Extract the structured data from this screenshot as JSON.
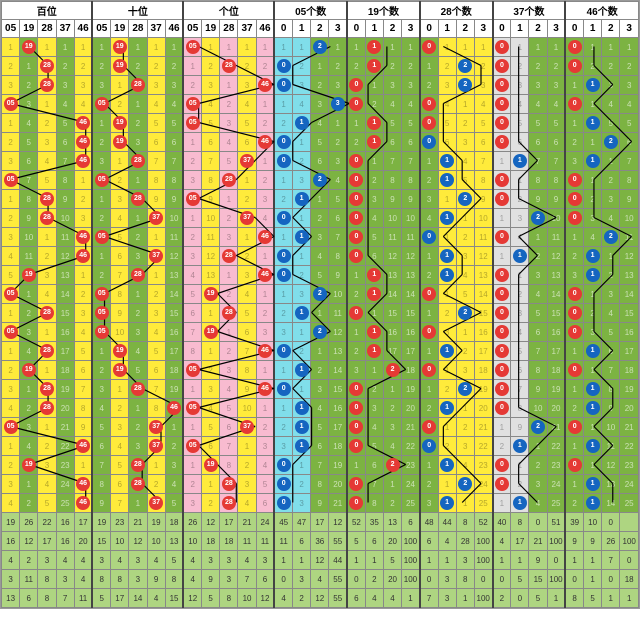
{
  "colors": {
    "yellow": "#ffeb3b",
    "green": "#7cb342",
    "pink": "#f8bbd0",
    "cyan": "#80deea",
    "grey": "#e0e0e0",
    "lightgreen": "#c5e1a5",
    "ball_red": "#e53935",
    "ball_blue": "#1565c0",
    "stat_bg": "#aed581",
    "border": "#888"
  },
  "groups": [
    {
      "title": "百位",
      "cols": [
        "05",
        "19",
        "28",
        "37",
        "46"
      ],
      "type": "digit",
      "col_colors": [
        "yl",
        "gn",
        "yl",
        "gn",
        "yl"
      ]
    },
    {
      "title": "十位",
      "cols": [
        "05",
        "19",
        "28",
        "37",
        "46"
      ],
      "type": "digit",
      "col_colors": [
        "gn",
        "yl",
        "gn",
        "yl",
        "gn"
      ]
    },
    {
      "title": "个位",
      "cols": [
        "05",
        "19",
        "28",
        "37",
        "46"
      ],
      "type": "digit",
      "col_colors": [
        "pk",
        "yl",
        "pk",
        "yl",
        "pk"
      ]
    },
    {
      "title": "05个数",
      "cols": [
        "0",
        "1",
        "2",
        "3"
      ],
      "type": "count",
      "col_colors": [
        "cy",
        "cy",
        "gn",
        "gn"
      ]
    },
    {
      "title": "19个数",
      "cols": [
        "0",
        "1",
        "2",
        "3"
      ],
      "type": "count",
      "col_colors": [
        "gn",
        "gn",
        "gn",
        "gn"
      ]
    },
    {
      "title": "28个数",
      "cols": [
        "0",
        "1",
        "2",
        "3"
      ],
      "type": "count",
      "col_colors": [
        "gn",
        "yl",
        "yl",
        "yl"
      ]
    },
    {
      "title": "37个数",
      "cols": [
        "0",
        "1",
        "2",
        "3"
      ],
      "type": "count",
      "col_colors": [
        "gy",
        "gy",
        "gn",
        "gn"
      ]
    },
    {
      "title": "46个数",
      "cols": [
        "0",
        "1",
        "2",
        "3"
      ],
      "type": "count",
      "col_colors": [
        "gn",
        "gn",
        "gn",
        "gn"
      ]
    }
  ],
  "rows": [
    {
      "d": [
        [
          1,
          "19"
        ],
        [
          1,
          "19"
        ],
        [
          0,
          "05"
        ]
      ],
      "c": [
        [
          2,
          "b"
        ],
        [
          1,
          "r"
        ],
        [
          0,
          "r"
        ],
        [
          0,
          "r"
        ],
        [
          0,
          "r"
        ]
      ]
    },
    {
      "d": [
        [
          2,
          "28"
        ],
        [
          1,
          "19"
        ],
        [
          2,
          "28"
        ]
      ],
      "c": [
        [
          0,
          "b"
        ],
        [
          1,
          "r"
        ],
        [
          2,
          "b"
        ],
        [
          0,
          "r"
        ],
        [
          0,
          "r"
        ]
      ]
    },
    {
      "d": [
        [
          2,
          "28"
        ],
        [
          2,
          "28"
        ],
        [
          4,
          "46"
        ]
      ],
      "c": [
        [
          0,
          "b"
        ],
        [
          0,
          "r"
        ],
        [
          2,
          "b"
        ],
        [
          0,
          "r"
        ],
        [
          1,
          "b"
        ]
      ]
    },
    {
      "d": [
        [
          0,
          "05"
        ],
        [
          0,
          "05"
        ],
        [
          0,
          "05"
        ]
      ],
      "c": [
        [
          3,
          "b"
        ],
        [
          0,
          "r"
        ],
        [
          0,
          "r"
        ],
        [
          0,
          "r"
        ],
        [
          0,
          "r"
        ]
      ]
    },
    {
      "d": [
        [
          4,
          "46"
        ],
        [
          1,
          "19"
        ],
        [
          0,
          "05"
        ]
      ],
      "c": [
        [
          1,
          "b"
        ],
        [
          1,
          "r"
        ],
        [
          0,
          "r"
        ],
        [
          0,
          "r"
        ],
        [
          1,
          "b"
        ]
      ]
    },
    {
      "d": [
        [
          4,
          "46"
        ],
        [
          1,
          "19"
        ],
        [
          4,
          "46"
        ]
      ],
      "c": [
        [
          0,
          "b"
        ],
        [
          1,
          "r"
        ],
        [
          0,
          "b"
        ],
        [
          0,
          "r"
        ],
        [
          2,
          "b"
        ]
      ]
    },
    {
      "d": [
        [
          4,
          "46"
        ],
        [
          2,
          "28"
        ],
        [
          3,
          "37"
        ]
      ],
      "c": [
        [
          0,
          "b"
        ],
        [
          0,
          "r"
        ],
        [
          1,
          "b"
        ],
        [
          1,
          "b"
        ],
        [
          1,
          "b"
        ]
      ]
    },
    {
      "d": [
        [
          0,
          "05"
        ],
        [
          0,
          "05"
        ],
        [
          2,
          "28"
        ]
      ],
      "c": [
        [
          2,
          "b"
        ],
        [
          0,
          "r"
        ],
        [
          1,
          "b"
        ],
        [
          0,
          "r"
        ],
        [
          0,
          "r"
        ]
      ]
    },
    {
      "d": [
        [
          2,
          "28"
        ],
        [
          2,
          "28"
        ],
        [
          0,
          "05"
        ]
      ],
      "c": [
        [
          1,
          "b"
        ],
        [
          0,
          "r"
        ],
        [
          2,
          "b"
        ],
        [
          0,
          "r"
        ],
        [
          0,
          "r"
        ]
      ]
    },
    {
      "d": [
        [
          2,
          "28"
        ],
        [
          3,
          "37"
        ],
        [
          3,
          "37"
        ]
      ],
      "c": [
        [
          0,
          "b"
        ],
        [
          0,
          "r"
        ],
        [
          1,
          "b"
        ],
        [
          2,
          "b"
        ],
        [
          0,
          "r"
        ]
      ]
    },
    {
      "d": [
        [
          4,
          "46"
        ],
        [
          0,
          "05"
        ],
        [
          4,
          "46"
        ]
      ],
      "c": [
        [
          1,
          "b"
        ],
        [
          0,
          "r"
        ],
        [
          0,
          "b"
        ],
        [
          0,
          "r"
        ],
        [
          2,
          "b"
        ]
      ]
    },
    {
      "d": [
        [
          4,
          "46"
        ],
        [
          3,
          "37"
        ],
        [
          2,
          "28"
        ]
      ],
      "c": [
        [
          0,
          "b"
        ],
        [
          0,
          "r"
        ],
        [
          1,
          "b"
        ],
        [
          1,
          "b"
        ],
        [
          1,
          "b"
        ]
      ]
    },
    {
      "d": [
        [
          1,
          "19"
        ],
        [
          2,
          "28"
        ],
        [
          4,
          "46"
        ]
      ],
      "c": [
        [
          0,
          "b"
        ],
        [
          1,
          "r"
        ],
        [
          1,
          "b"
        ],
        [
          0,
          "r"
        ],
        [
          1,
          "b"
        ]
      ]
    },
    {
      "d": [
        [
          0,
          "05"
        ],
        [
          0,
          "05"
        ],
        [
          1,
          "19"
        ]
      ],
      "c": [
        [
          2,
          "b"
        ],
        [
          1,
          "r"
        ],
        [
          0,
          "r"
        ],
        [
          0,
          "r"
        ],
        [
          0,
          "r"
        ]
      ]
    },
    {
      "d": [
        [
          2,
          "28"
        ],
        [
          0,
          "05"
        ],
        [
          2,
          "28"
        ]
      ],
      "c": [
        [
          1,
          "b"
        ],
        [
          0,
          "r"
        ],
        [
          2,
          "b"
        ],
        [
          0,
          "r"
        ],
        [
          0,
          "r"
        ]
      ]
    },
    {
      "d": [
        [
          0,
          "05"
        ],
        [
          0,
          "05"
        ],
        [
          1,
          "19"
        ]
      ],
      "c": [
        [
          2,
          "b"
        ],
        [
          1,
          "r"
        ],
        [
          0,
          "r"
        ],
        [
          0,
          "r"
        ],
        [
          0,
          "r"
        ]
      ]
    },
    {
      "d": [
        [
          2,
          "28"
        ],
        [
          1,
          "19"
        ],
        [
          4,
          "46"
        ]
      ],
      "c": [
        [
          0,
          "b"
        ],
        [
          1,
          "r"
        ],
        [
          1,
          "b"
        ],
        [
          0,
          "r"
        ],
        [
          1,
          "b"
        ]
      ]
    },
    {
      "d": [
        [
          1,
          "19"
        ],
        [
          1,
          "19"
        ],
        [
          0,
          "05"
        ]
      ],
      "c": [
        [
          1,
          "b"
        ],
        [
          2,
          "r"
        ],
        [
          0,
          "r"
        ],
        [
          0,
          "r"
        ],
        [
          0,
          "r"
        ]
      ]
    },
    {
      "d": [
        [
          2,
          "28"
        ],
        [
          2,
          "28"
        ],
        [
          4,
          "46"
        ]
      ],
      "c": [
        [
          0,
          "b"
        ],
        [
          0,
          "r"
        ],
        [
          2,
          "b"
        ],
        [
          0,
          "r"
        ],
        [
          1,
          "b"
        ]
      ]
    },
    {
      "d": [
        [
          2,
          "28"
        ],
        [
          4,
          "46"
        ],
        [
          0,
          "05"
        ]
      ],
      "c": [
        [
          1,
          "b"
        ],
        [
          0,
          "r"
        ],
        [
          1,
          "b"
        ],
        [
          0,
          "r"
        ],
        [
          1,
          "b"
        ]
      ]
    },
    {
      "d": [
        [
          0,
          "05"
        ],
        [
          3,
          "37"
        ],
        [
          3,
          "37"
        ]
      ],
      "c": [
        [
          1,
          "b"
        ],
        [
          0,
          "r"
        ],
        [
          0,
          "r"
        ],
        [
          2,
          "b"
        ],
        [
          0,
          "r"
        ]
      ]
    },
    {
      "d": [
        [
          4,
          "46"
        ],
        [
          3,
          "37"
        ],
        [
          0,
          "05"
        ]
      ],
      "c": [
        [
          1,
          "b"
        ],
        [
          0,
          "r"
        ],
        [
          0,
          "b"
        ],
        [
          1,
          "b"
        ],
        [
          1,
          "b"
        ]
      ]
    },
    {
      "d": [
        [
          1,
          "19"
        ],
        [
          2,
          "28"
        ],
        [
          1,
          "19"
        ]
      ],
      "c": [
        [
          0,
          "b"
        ],
        [
          2,
          "r"
        ],
        [
          1,
          "b"
        ],
        [
          0,
          "r"
        ],
        [
          0,
          "r"
        ]
      ]
    },
    {
      "d": [
        [
          4,
          "46"
        ],
        [
          2,
          "28"
        ],
        [
          2,
          "28"
        ]
      ],
      "c": [
        [
          0,
          "b"
        ],
        [
          0,
          "r"
        ],
        [
          2,
          "b"
        ],
        [
          0,
          "r"
        ],
        [
          1,
          "b"
        ]
      ]
    },
    {
      "d": [
        [
          4,
          "46"
        ],
        [
          3,
          "37"
        ],
        [
          2,
          "28"
        ]
      ],
      "c": [
        [
          0,
          "b"
        ],
        [
          0,
          "r"
        ],
        [
          1,
          "b"
        ],
        [
          1,
          "b"
        ],
        [
          1,
          "b"
        ]
      ]
    }
  ],
  "stats": [
    [
      19,
      26,
      22,
      16,
      17,
      19,
      23,
      21,
      19,
      18,
      26,
      12,
      17,
      21,
      24,
      45,
      47,
      17,
      12,
      52,
      35,
      13,
      6,
      48,
      44,
      8,
      52,
      40,
      8,
      0,
      51,
      39,
      10,
      0
    ],
    [
      16,
      12,
      17,
      16,
      20,
      15,
      10,
      12,
      10,
      13,
      10,
      18,
      18,
      11,
      11,
      11,
      6,
      36,
      55,
      5,
      6,
      20,
      100,
      6,
      4,
      28,
      100,
      4,
      17,
      21,
      100,
      9,
      9,
      26,
      100
    ],
    [
      4,
      2,
      3,
      4,
      4,
      3,
      4,
      3,
      4,
      5,
      4,
      3,
      3,
      4,
      3,
      1,
      1,
      12,
      44,
      1,
      1,
      5,
      100,
      1,
      1,
      3,
      100,
      1,
      1,
      9,
      0,
      1,
      1,
      7,
      0
    ],
    [
      3,
      11,
      8,
      3,
      4,
      8,
      8,
      3,
      9,
      8,
      4,
      9,
      3,
      7,
      6,
      0,
      3,
      4,
      55,
      0,
      2,
      20,
      100,
      0,
      3,
      8,
      0,
      0,
      5,
      15,
      100,
      0,
      1,
      0,
      18,
      100
    ],
    [
      13,
      6,
      8,
      7,
      11,
      5,
      17,
      14,
      4,
      15,
      12,
      5,
      8,
      10,
      12,
      4,
      2,
      12,
      55,
      6,
      4,
      4,
      1,
      7,
      3,
      1,
      100,
      2,
      0,
      5,
      1,
      8,
      5,
      1,
      1
    ]
  ],
  "line_style": {
    "stroke": "#000",
    "width": 1.2
  }
}
